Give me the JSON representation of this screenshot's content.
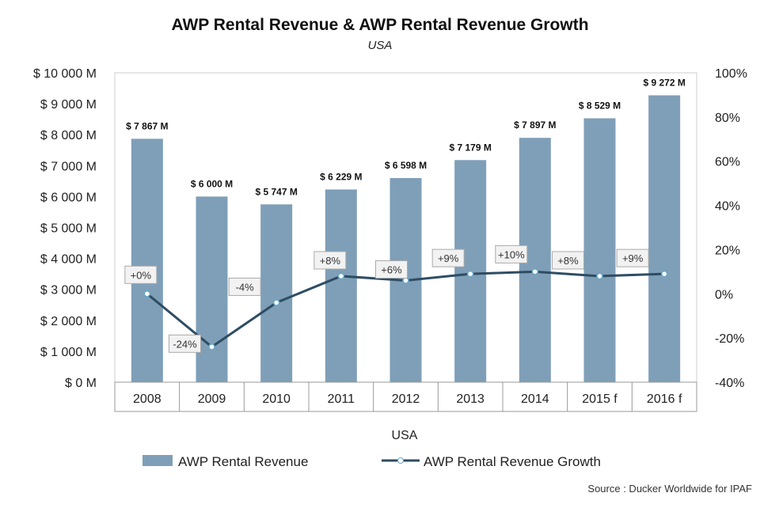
{
  "chart_data": {
    "type": "bar",
    "title": "AWP Rental Revenue & AWP Rental Revenue Growth",
    "subtitle": "USA",
    "xlabel": "USA",
    "categories": [
      "2008",
      "2009",
      "2010",
      "2011",
      "2012",
      "2013",
      "2014",
      "2015 f",
      "2016 f"
    ],
    "series": [
      {
        "name": "AWP Rental Revenue",
        "type": "bar",
        "axis": "left",
        "color": "#7f9fb8",
        "values": [
          7867,
          6000,
          5747,
          6229,
          6598,
          7179,
          7897,
          8529,
          9272
        ],
        "labels": [
          "$ 7 867 M",
          "$ 6 000 M",
          "$ 5 747 M",
          "$ 6 229 M",
          "$ 6 598 M",
          "$ 7 179 M",
          "$ 7 897 M",
          "$ 8 529 M",
          "$ 9 272 M"
        ]
      },
      {
        "name": "AWP Rental Revenue Growth",
        "type": "line",
        "axis": "right",
        "color": "#2e4d63",
        "values": [
          0,
          -24,
          -4,
          8,
          6,
          9,
          10,
          8,
          9
        ],
        "labels": [
          "+0%",
          "-24%",
          "-4%",
          "+8%",
          "+6%",
          "+9%",
          "+10%",
          "+8%",
          "+9%"
        ]
      }
    ],
    "left_axis": {
      "ylim": [
        0,
        10000
      ],
      "ticks": [
        "$ 0 M",
        "$ 1 000 M",
        "$ 2 000 M",
        "$ 3 000 M",
        "$ 4 000 M",
        "$ 5 000 M",
        "$ 6 000 M",
        "$ 7 000 M",
        "$ 8 000 M",
        "$ 9 000 M",
        "$ 10 000 M"
      ]
    },
    "right_axis": {
      "ylim": [
        -40,
        100
      ],
      "ticks": [
        "-40%",
        "-20%",
        "0%",
        "20%",
        "40%",
        "60%",
        "80%",
        "100%"
      ]
    },
    "legend": "bottom",
    "grid": false,
    "source": "Source : Ducker Worldwide for IPAF"
  }
}
